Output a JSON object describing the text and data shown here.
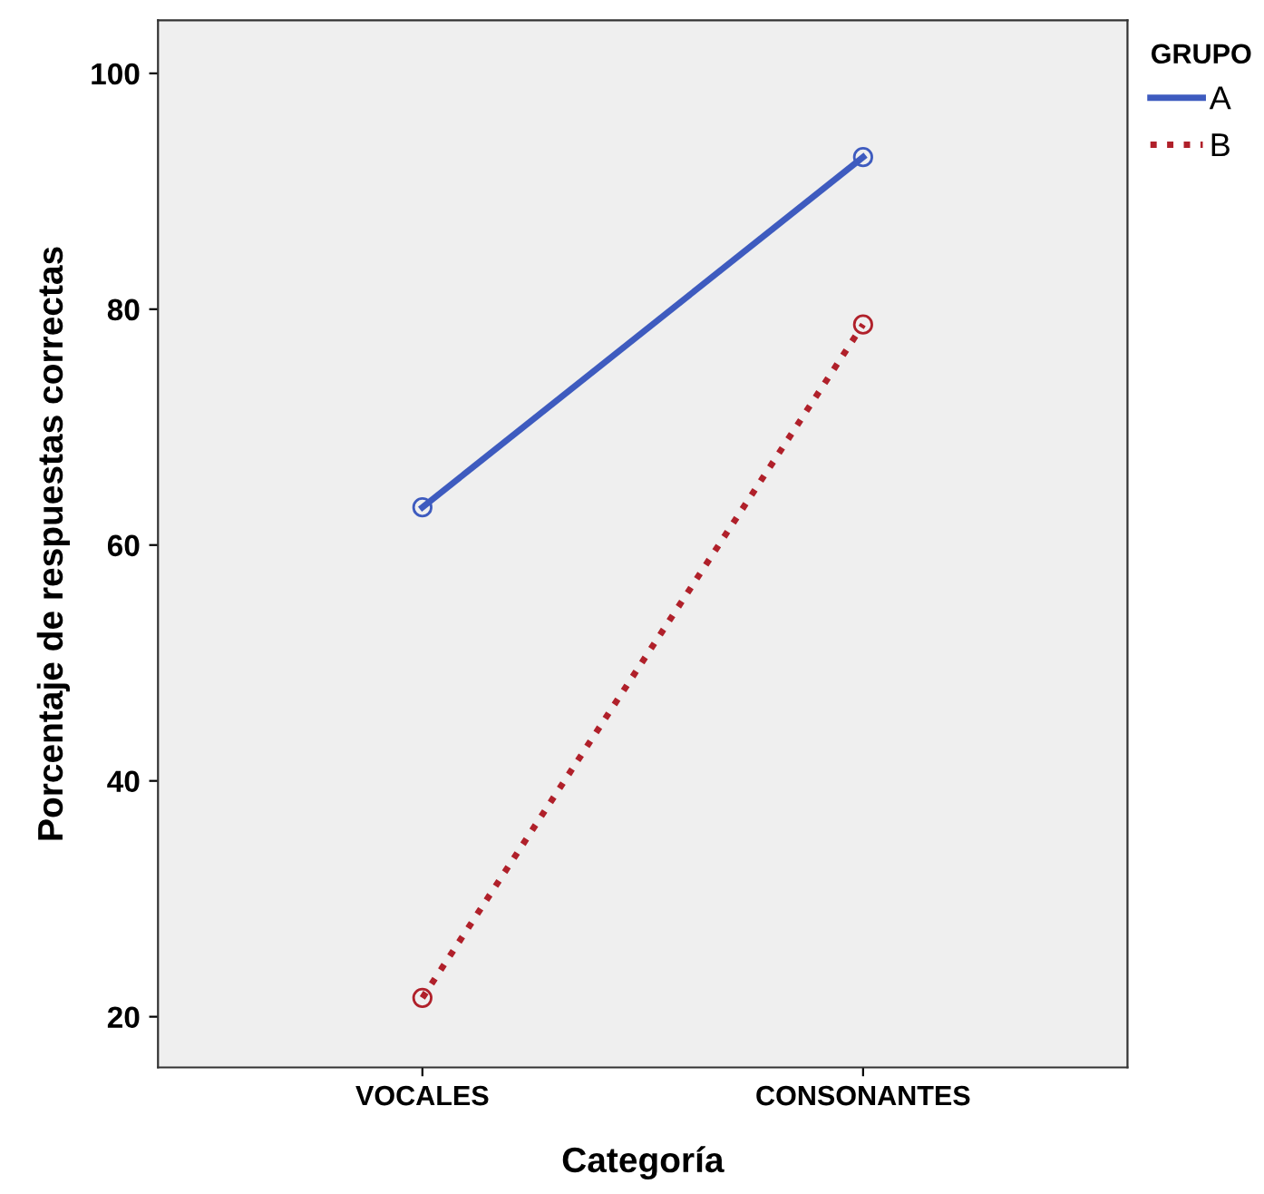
{
  "chart_data": {
    "type": "line",
    "xlabel": "Categoría",
    "ylabel": "Porcentaje de respuestas correctas",
    "legend_title": "GRUPO",
    "legend": "right",
    "marker": "circle",
    "grid": false,
    "categories": [
      "VOCALES",
      "CONSONANTES"
    ],
    "ylim": [
      15.7,
      104.5
    ],
    "yticks": [
      20,
      40,
      60,
      80,
      100
    ],
    "series": [
      {
        "name": "A",
        "color": "#3e5bbf",
        "line_style": "solid",
        "values": [
          63.2,
          92.9
        ]
      },
      {
        "name": "B",
        "color": "#b0202a",
        "line_style": "dotted",
        "values": [
          21.6,
          78.7
        ]
      }
    ]
  }
}
